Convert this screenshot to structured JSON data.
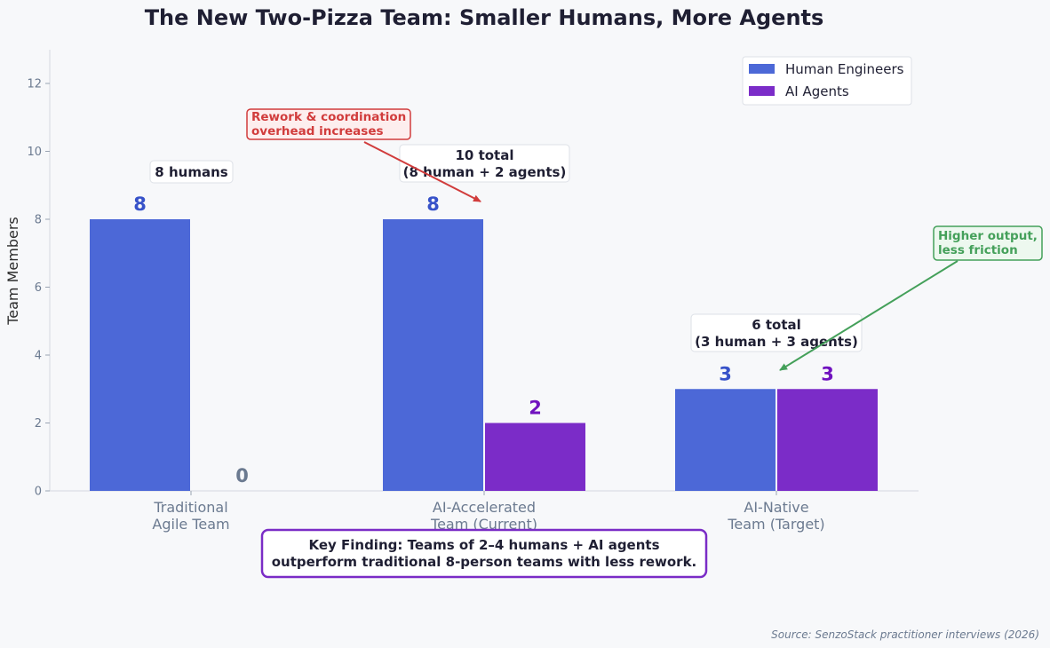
{
  "chart_data": {
    "type": "bar",
    "title": "The New Two-Pizza Team: Smaller Humans, More Agents",
    "ylabel": "Team Members",
    "xlabel": "",
    "ylim": [
      0,
      13
    ],
    "yticks": [
      0,
      2,
      4,
      6,
      8,
      10,
      12
    ],
    "grid": false,
    "legend_position": "top-right",
    "categories": [
      [
        "Traditional",
        "Agile Team"
      ],
      [
        "AI-Accelerated",
        "Team (Current)"
      ],
      [
        "AI-Native",
        "Team (Target)"
      ]
    ],
    "series": [
      {
        "name": "Human Engineers",
        "color": "#4c68d7",
        "label_color": "#3752c9",
        "values": [
          8,
          8,
          3
        ]
      },
      {
        "name": "AI Agents",
        "color": "#7b2cc8",
        "label_color": "#7012bf",
        "values": [
          0,
          2,
          3
        ]
      }
    ],
    "zero_label_color": "#6b7a90",
    "total_boxes": [
      {
        "lines": [
          "8 humans"
        ]
      },
      {
        "lines": [
          "10 total",
          "(8 human + 2 agents)"
        ]
      },
      {
        "lines": [
          "6 total",
          "(3 human + 3 agents)"
        ]
      }
    ],
    "annotations": [
      {
        "lines": [
          "Rework & coordination",
          "overhead increases"
        ],
        "color": "#d13c3c"
      },
      {
        "lines": [
          "Higher output,",
          "less friction"
        ],
        "color": "#44a05a"
      }
    ],
    "key_finding": {
      "lines": [
        "Key Finding: Teams of 2–4 humans + AI agents",
        "outperform traditional 8-person teams with less rework."
      ],
      "border_color": "#7a2cc6"
    },
    "source": "Source: SenzoStack practitioner interviews (2026)"
  }
}
